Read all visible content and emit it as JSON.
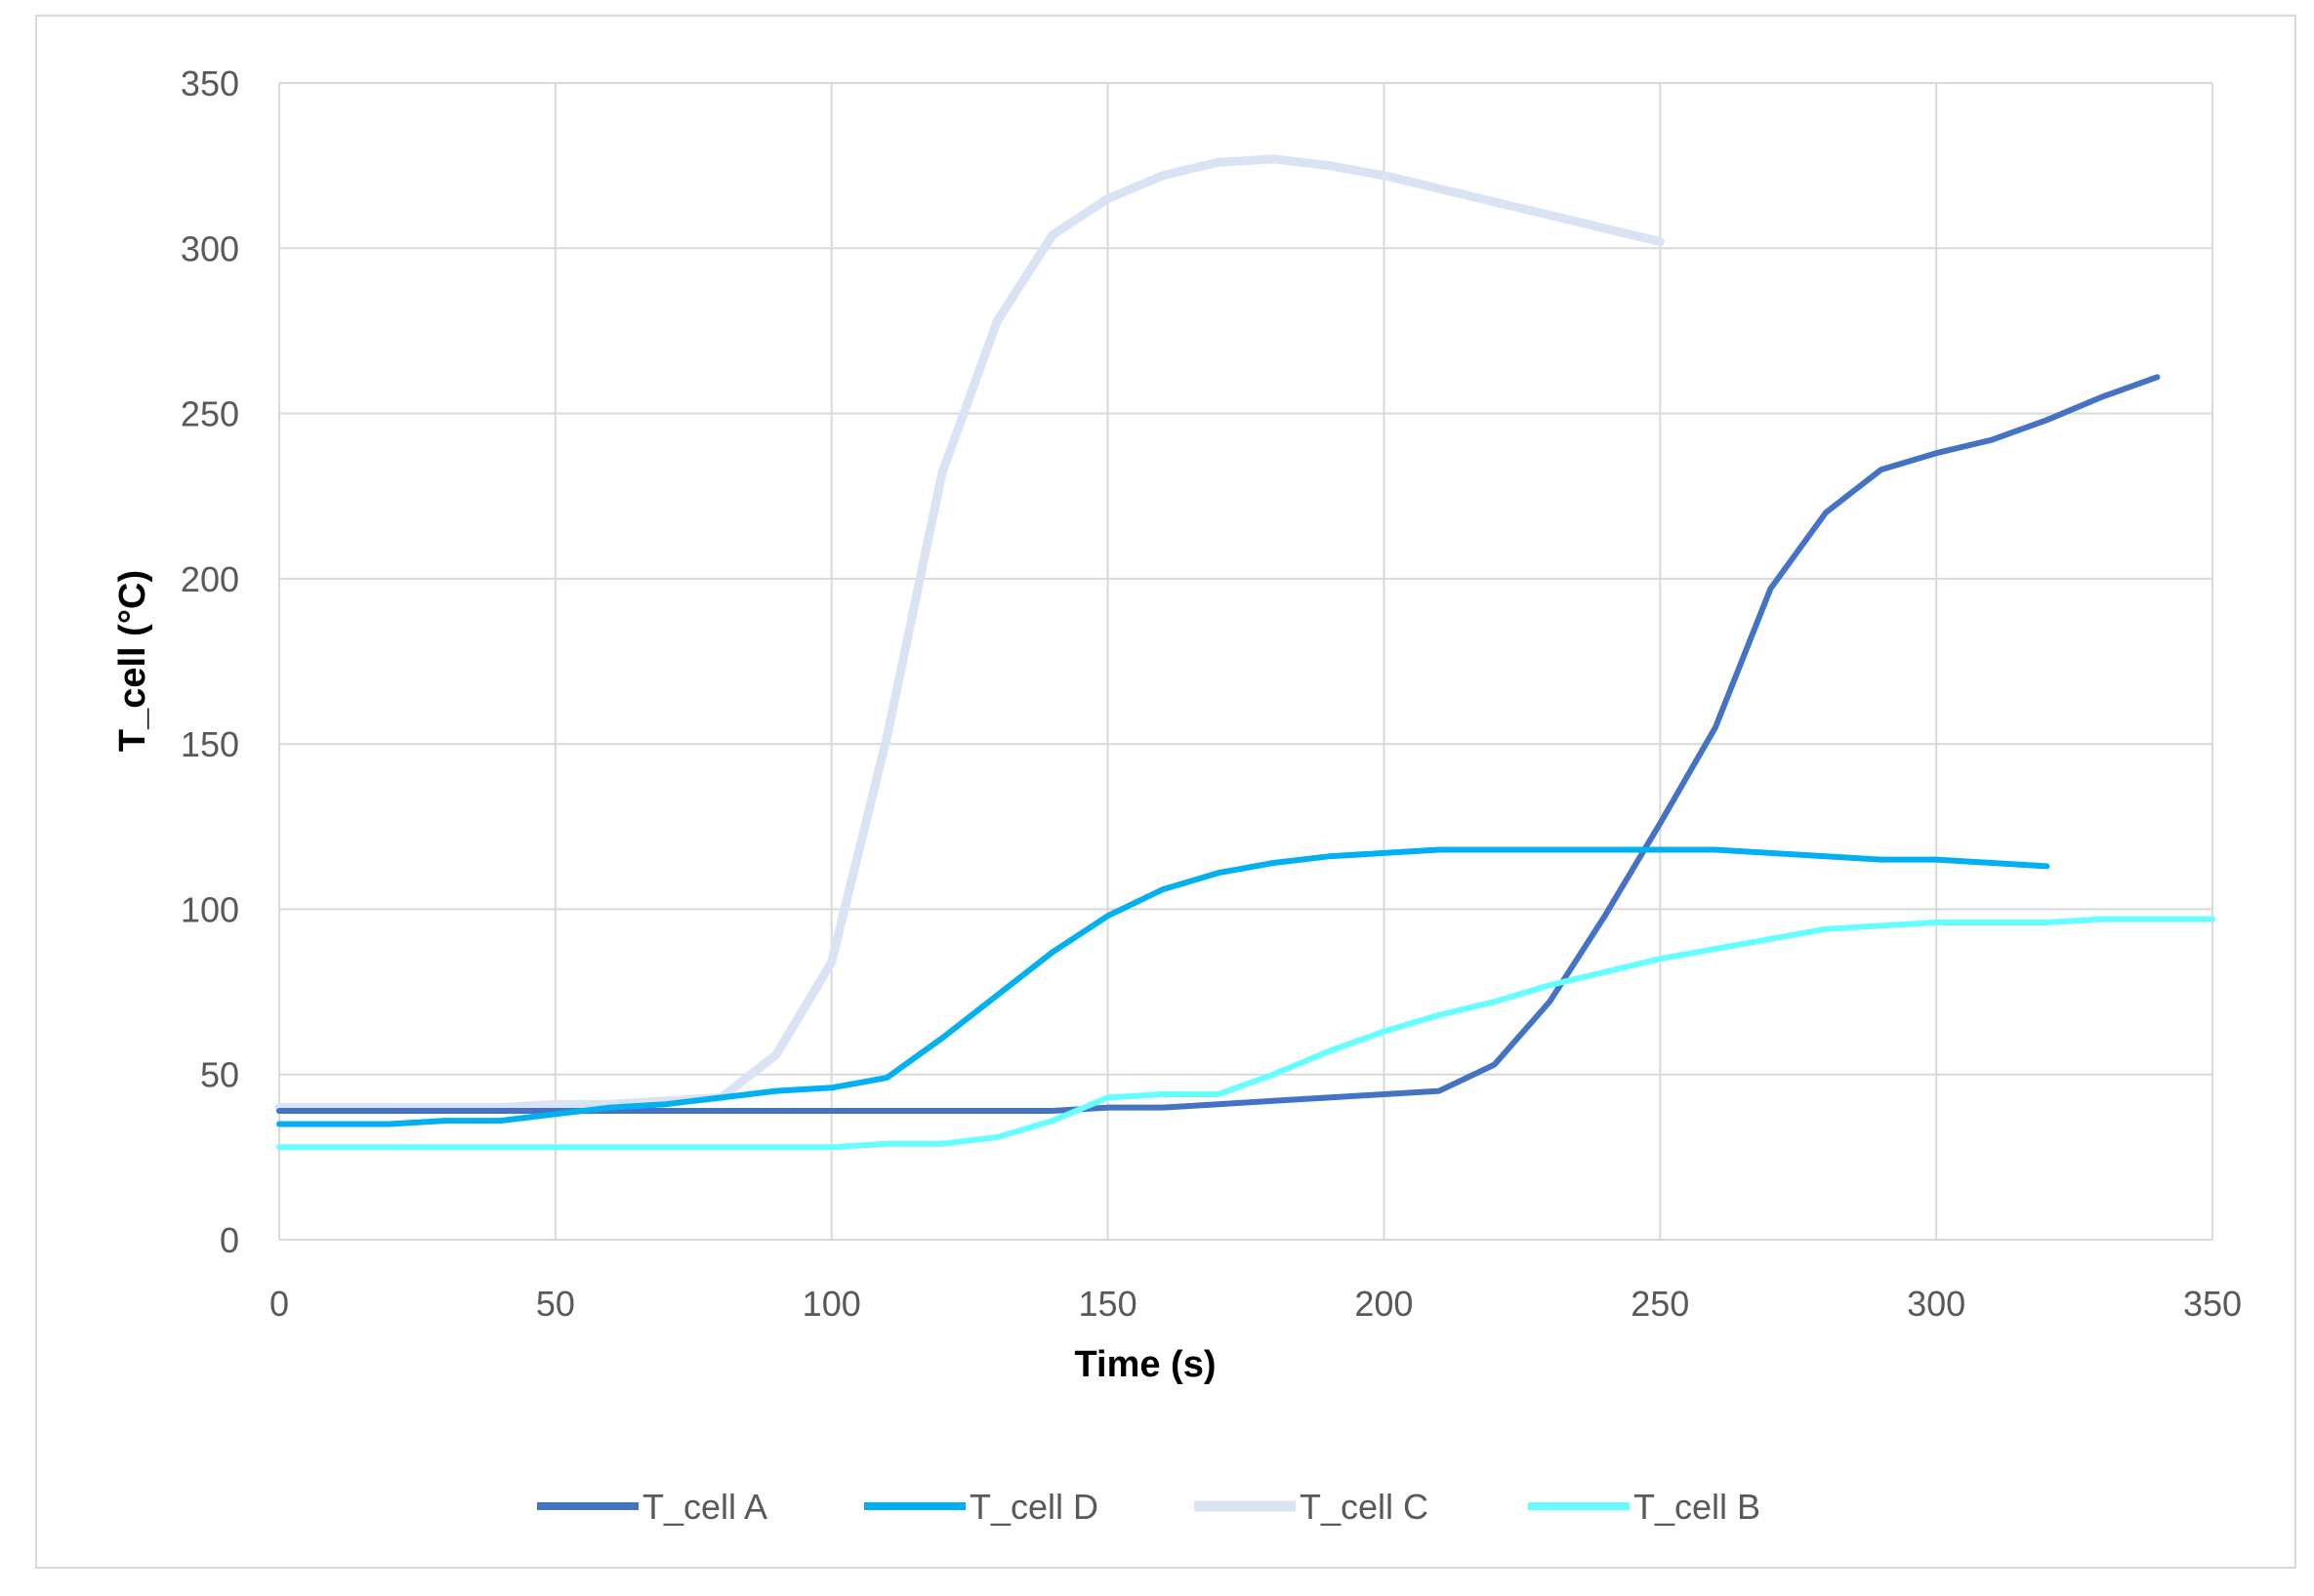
{
  "chart_data": {
    "type": "line",
    "title": "",
    "xlabel": "Time (s)",
    "ylabel": "T_cell  (°C)",
    "xlim": [
      0,
      350
    ],
    "ylim": [
      0,
      350
    ],
    "xticks": [
      0,
      50,
      100,
      150,
      200,
      250,
      300,
      350
    ],
    "yticks": [
      0,
      50,
      100,
      150,
      200,
      250,
      300,
      350
    ],
    "grid": true,
    "legend_position": "bottom",
    "series": [
      {
        "name": "T_cell A",
        "color": "#4472C4",
        "width": 6,
        "x": [
          0,
          10,
          20,
          30,
          40,
          50,
          60,
          70,
          80,
          90,
          100,
          110,
          120,
          130,
          140,
          150,
          160,
          170,
          180,
          190,
          200,
          210,
          220,
          230,
          240,
          250,
          260,
          270,
          280,
          290,
          300,
          310,
          320,
          330,
          340
        ],
        "values": [
          39,
          39,
          39,
          39,
          39,
          39,
          39,
          39,
          39,
          39,
          39,
          39,
          39,
          39,
          39,
          40,
          40,
          41,
          42,
          43,
          44,
          45,
          53,
          72,
          98,
          126,
          155,
          197,
          220,
          233,
          238,
          242,
          248,
          255,
          261
        ]
      },
      {
        "name": "T_cell D",
        "color": "#00B0F0",
        "width": 6,
        "x": [
          0,
          10,
          20,
          30,
          40,
          50,
          60,
          70,
          80,
          90,
          100,
          110,
          120,
          130,
          140,
          150,
          160,
          170,
          180,
          190,
          200,
          210,
          220,
          230,
          240,
          250,
          260,
          270,
          280,
          290,
          300,
          310,
          320
        ],
        "values": [
          35,
          35,
          35,
          36,
          36,
          38,
          40,
          41,
          43,
          45,
          46,
          49,
          61,
          74,
          87,
          98,
          106,
          111,
          114,
          116,
          117,
          118,
          118,
          118,
          118,
          118,
          118,
          117,
          116,
          115,
          115,
          114,
          113
        ]
      },
      {
        "name": "T_cell C",
        "color": "#DAE3F3",
        "width": 9,
        "x": [
          0,
          10,
          20,
          30,
          40,
          50,
          60,
          70,
          80,
          90,
          100,
          110,
          120,
          130,
          140,
          150,
          160,
          170,
          180,
          190,
          200,
          210,
          220,
          230,
          240,
          250
        ],
        "values": [
          40,
          40,
          40,
          40,
          40,
          41,
          41,
          42,
          43,
          56,
          84,
          152,
          232,
          278,
          304,
          315,
          322,
          326,
          327,
          325,
          322,
          318,
          314,
          310,
          306,
          302
        ]
      },
      {
        "name": "T_cell B",
        "color": "#66FFFF",
        "width": 6,
        "x": [
          0,
          10,
          20,
          30,
          40,
          50,
          60,
          70,
          80,
          90,
          100,
          110,
          120,
          130,
          140,
          150,
          160,
          170,
          180,
          190,
          200,
          210,
          220,
          230,
          240,
          250,
          260,
          270,
          280,
          290,
          300,
          310,
          320,
          330,
          340,
          350
        ],
        "values": [
          28,
          28,
          28,
          28,
          28,
          28,
          28,
          28,
          28,
          28,
          28,
          29,
          29,
          31,
          36,
          43,
          44,
          44,
          50,
          57,
          63,
          68,
          72,
          77,
          81,
          85,
          88,
          91,
          94,
          95,
          96,
          96,
          96,
          97,
          97,
          97
        ]
      }
    ]
  }
}
